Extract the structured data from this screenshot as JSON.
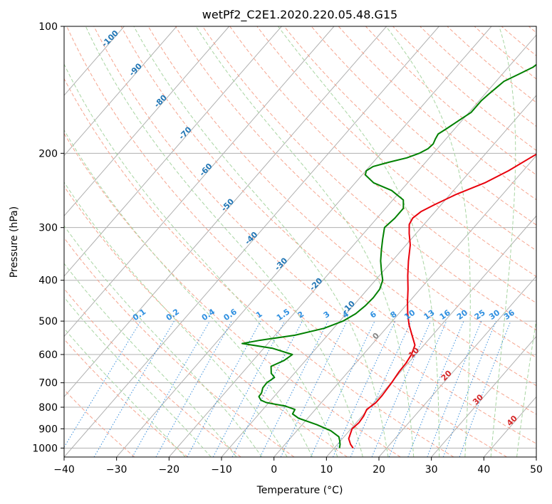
{
  "chart_data": {
    "type": "line",
    "diagram": "Skew-T log-P",
    "title": "wetPf2_C2E1.2020.220.05.48.G15",
    "xlabel": "Temperature (°C)",
    "ylabel": "Pressure (hPa)",
    "xlim": [
      -40,
      50
    ],
    "ylim": [
      1050,
      100
    ],
    "y_scale": "log",
    "grid": true,
    "x_ticks": [
      -40,
      -30,
      -20,
      -10,
      0,
      10,
      20,
      30,
      40,
      50
    ],
    "x_tick_labels": [
      "−40",
      "−30",
      "−20",
      "−10",
      "0",
      "10",
      "20",
      "30",
      "40",
      "50"
    ],
    "y_ticks": [
      100,
      200,
      300,
      400,
      500,
      600,
      700,
      800,
      900,
      1000
    ],
    "y_tick_labels": [
      "100",
      "200",
      "300",
      "400",
      "500",
      "600",
      "700",
      "800",
      "900",
      "1000"
    ],
    "dry_adiabat_labels": [
      "-100",
      "-90",
      "-80",
      "-70",
      "-60",
      "-50",
      "-40",
      "-30",
      "-20",
      "-10"
    ],
    "mixing_ratio_labels": [
      "0.1",
      "0.2",
      "0.4",
      "0.6",
      "1",
      "1.5",
      "2",
      "3",
      "4",
      "6",
      "8",
      "10",
      "13",
      "16",
      "20",
      "25",
      "30",
      "36"
    ],
    "moist_adiabat_labels": [
      "0",
      "10",
      "20",
      "30",
      "40"
    ],
    "series": [
      {
        "color": "#e8000b",
        "points": [
          [
            1000,
            13.6
          ],
          [
            980,
            12.5
          ],
          [
            950,
            11.2
          ],
          [
            900,
            10.2
          ],
          [
            870,
            10.5
          ],
          [
            840,
            10.3
          ],
          [
            810,
            9.8
          ],
          [
            780,
            10.4
          ],
          [
            750,
            10.4
          ],
          [
            700,
            10.1
          ],
          [
            660,
            9.7
          ],
          [
            630,
            9.6
          ],
          [
            600,
            9.2
          ],
          [
            570,
            8.3
          ],
          [
            540,
            6.1
          ],
          [
            510,
            3.8
          ],
          [
            480,
            1.7
          ],
          [
            450,
            -0.3
          ],
          [
            420,
            -2.3
          ],
          [
            390,
            -4.6
          ],
          [
            360,
            -6.9
          ],
          [
            330,
            -9.2
          ],
          [
            310,
            -11.3
          ],
          [
            295,
            -12.8
          ],
          [
            285,
            -13.2
          ],
          [
            275,
            -12.7
          ],
          [
            265,
            -11.3
          ],
          [
            250,
            -8.8
          ],
          [
            235,
            -5.3
          ],
          [
            220,
            -2.8
          ],
          [
            205,
            -0.8
          ],
          [
            190,
            1.4
          ],
          [
            175,
            3.2
          ],
          [
            165,
            3.4
          ],
          [
            155,
            2.8
          ],
          [
            145,
            3.4
          ],
          [
            135,
            4.1
          ],
          [
            125,
            5.0
          ],
          [
            115,
            6.0
          ],
          [
            105,
            7.4
          ],
          [
            100,
            8.4
          ]
        ]
      },
      {
        "color": "#008000",
        "points": [
          [
            1000,
            11.0
          ],
          [
            980,
            10.5
          ],
          [
            960,
            9.8
          ],
          [
            940,
            9.0
          ],
          [
            910,
            6.5
          ],
          [
            880,
            2.8
          ],
          [
            850,
            -1.7
          ],
          [
            830,
            -3.6
          ],
          [
            810,
            -3.9
          ],
          [
            795,
            -6.3
          ],
          [
            780,
            -10.5
          ],
          [
            770,
            -11.9
          ],
          [
            755,
            -12.9
          ],
          [
            740,
            -13.0
          ],
          [
            720,
            -13.6
          ],
          [
            700,
            -13.7
          ],
          [
            680,
            -13.1
          ],
          [
            665,
            -14.4
          ],
          [
            640,
            -15.6
          ],
          [
            620,
            -14.1
          ],
          [
            600,
            -13.5
          ],
          [
            580,
            -18.3
          ],
          [
            565,
            -24.9
          ],
          [
            555,
            -22.0
          ],
          [
            540,
            -16.2
          ],
          [
            520,
            -11.8
          ],
          [
            500,
            -9.4
          ],
          [
            480,
            -8.2
          ],
          [
            460,
            -7.7
          ],
          [
            440,
            -7.5
          ],
          [
            420,
            -7.7
          ],
          [
            400,
            -8.6
          ],
          [
            380,
            -10.4
          ],
          [
            360,
            -12.2
          ],
          [
            340,
            -13.8
          ],
          [
            320,
            -15.4
          ],
          [
            300,
            -17.0
          ],
          [
            285,
            -16.6
          ],
          [
            270,
            -16.6
          ],
          [
            258,
            -18.0
          ],
          [
            245,
            -21.8
          ],
          [
            235,
            -26.5
          ],
          [
            225,
            -29.4
          ],
          [
            220,
            -29.9
          ],
          [
            215,
            -29.3
          ],
          [
            210,
            -27.0
          ],
          [
            205,
            -24.3
          ],
          [
            200,
            -22.7
          ],
          [
            195,
            -21.8
          ],
          [
            190,
            -21.6
          ],
          [
            185,
            -22.0
          ],
          [
            180,
            -22.3
          ],
          [
            175,
            -21.6
          ],
          [
            165,
            -20.3
          ],
          [
            160,
            -19.6
          ],
          [
            150,
            -19.6
          ],
          [
            145,
            -19.3
          ],
          [
            140,
            -18.9
          ],
          [
            135,
            -18.5
          ],
          [
            130,
            -16.9
          ],
          [
            125,
            -15.3
          ],
          [
            120,
            -14.7
          ],
          [
            115,
            -14.2
          ],
          [
            110,
            -13.8
          ],
          [
            105,
            -12.6
          ],
          [
            100,
            -10.8
          ]
        ]
      }
    ]
  }
}
